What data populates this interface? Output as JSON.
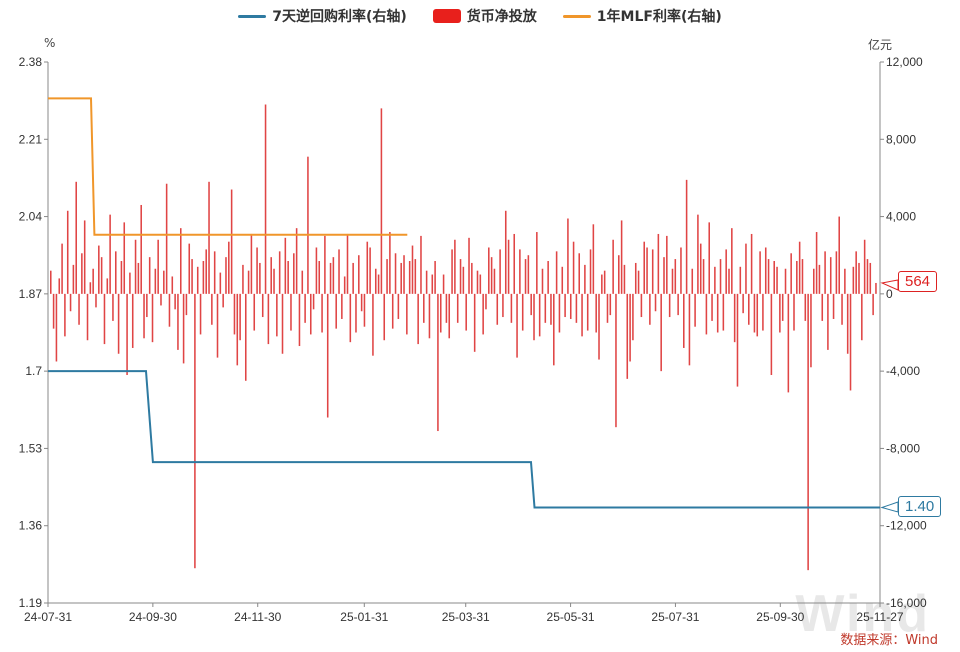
{
  "legend": {
    "items": [
      {
        "label": "7天逆回购利率(右轴)",
        "color": "#2e7aa1",
        "kind": "line"
      },
      {
        "label": "货币净投放",
        "color": "#e8201c",
        "kind": "box"
      },
      {
        "label": "1年MLF利率(右轴)",
        "color": "#f0962a",
        "kind": "line"
      }
    ]
  },
  "left_unit": "%",
  "right_unit": "亿元",
  "source": "数据来源：Wind",
  "watermark": "Wind",
  "callouts": {
    "net_value": "564",
    "rate_value": "1.40"
  },
  "chart_data": {
    "type": "bar+line",
    "x_ticks": [
      "24-07-31",
      "24-09-30",
      "24-11-30",
      "25-01-31",
      "25-03-31",
      "25-05-31",
      "25-07-31",
      "25-09-30",
      "25-11-27"
    ],
    "left_axis": {
      "ticks": [
        "2.38",
        "2.21",
        "2.04",
        "1.87",
        "1.7",
        "1.53",
        "1.36",
        "1.19"
      ],
      "range": [
        1.19,
        2.38
      ]
    },
    "right_axis": {
      "ticks": [
        "12,000",
        "8,000",
        "4,000",
        "0",
        "-4,000",
        "-8,000",
        "-12,000",
        "-16,000"
      ],
      "range": [
        -16000,
        12000
      ]
    },
    "series": [
      {
        "name": "7天逆回购利率(右轴)",
        "type": "line",
        "color": "#2e7aa1",
        "points": [
          [
            "24-07-31",
            1.7
          ],
          [
            "24-09-26",
            1.7
          ],
          [
            "24-09-30",
            1.5
          ],
          [
            "25-05-08",
            1.5
          ],
          [
            "25-05-10",
            1.4
          ],
          [
            "25-11-27",
            1.4
          ]
        ]
      },
      {
        "name": "1年MLF利率(右轴)",
        "type": "line",
        "color": "#f0962a",
        "points": [
          [
            "24-07-31",
            2.3
          ],
          [
            "24-08-25",
            2.3
          ],
          [
            "24-08-27",
            2.0
          ],
          [
            "25-02-25",
            2.0
          ]
        ]
      },
      {
        "name": "货币净投放",
        "type": "bar",
        "color": "#e8201c",
        "values": [
          1200,
          -1800,
          -3500,
          800,
          2600,
          -2200,
          4300,
          -900,
          1500,
          5800,
          -1600,
          2100,
          3800,
          -2400,
          600,
          1300,
          -700,
          2500,
          1900,
          -2600,
          800,
          4100,
          -1400,
          2200,
          -3100,
          1700,
          3700,
          -4200,
          1100,
          -2800,
          2800,
          1600,
          4600,
          -2300,
          -1200,
          1900,
          -2500,
          1300,
          2800,
          -600,
          1200,
          5700,
          -1700,
          900,
          -800,
          -2900,
          3400,
          -3600,
          -1100,
          2600,
          1800,
          -14200,
          1400,
          -2100,
          1700,
          2300,
          5800,
          -1600,
          2200,
          -3300,
          1100,
          -700,
          1900,
          2700,
          5400,
          -2100,
          -3700,
          -2400,
          1500,
          -4500,
          1200,
          3100,
          -1900,
          2400,
          1600,
          -1200,
          9800,
          -2600,
          1900,
          1300,
          -2200,
          2200,
          -3100,
          2900,
          1700,
          -1900,
          2100,
          3400,
          -2700,
          1200,
          -1500,
          7100,
          -2100,
          -800,
          2400,
          1700,
          -2000,
          3000,
          -6400,
          1600,
          1900,
          -1800,
          2300,
          -1300,
          900,
          3100,
          -2500,
          1600,
          -2000,
          2000,
          -900,
          -1700,
          2700,
          2400,
          -3200,
          1300,
          1000,
          9600,
          -2400,
          1800,
          3200,
          -1800,
          2100,
          -1300,
          1600,
          2000,
          -2100,
          1700,
          2500,
          1800,
          -2600,
          3000,
          -1500,
          1200,
          -2300,
          1000,
          1700,
          -7100,
          -2000,
          1000,
          -1500,
          -2300,
          2300,
          2800,
          -1500,
          1800,
          1400,
          -1900,
          2900,
          1600,
          -3000,
          1200,
          1000,
          -2100,
          -800,
          2400,
          1900,
          1300,
          -1600,
          2300,
          -1200,
          4300,
          2800,
          -1500,
          3100,
          -3300,
          2300,
          -1900,
          1800,
          2000,
          -1100,
          -2400,
          3200,
          -2200,
          1300,
          -1500,
          1700,
          -1600,
          -3700,
          2200,
          -2000,
          1400,
          -1200,
          3900,
          -1300,
          2700,
          -1500,
          2100,
          -2200,
          1500,
          -1900,
          2300,
          3600,
          -2000,
          -3400,
          1000,
          1200,
          -1500,
          -1100,
          2800,
          -6900,
          2000,
          3800,
          1500,
          -4400,
          -3500,
          -2400,
          1600,
          1200,
          -1200,
          2700,
          2400,
          -1600,
          2300,
          -900,
          3100,
          -4000,
          1900,
          3000,
          -1200,
          1300,
          1800,
          -1100,
          2400,
          -2800,
          5900,
          -3700,
          1300,
          -1700,
          4100,
          2600,
          1800,
          -2100,
          3700,
          -1400,
          1400,
          -2000,
          1800,
          -1900,
          2300,
          1300,
          3400,
          -2500,
          -4800,
          1400,
          -1000,
          2600,
          -1600,
          3100,
          -2000,
          -2200,
          2200,
          -1900,
          2400,
          1800,
          -4200,
          1700,
          1400,
          -2000,
          -1400,
          1300,
          -5100,
          2100,
          -1900,
          1700,
          2700,
          1800,
          -1400,
          -14300,
          -3800,
          1300,
          3200,
          1500,
          -1400,
          2200,
          -2900,
          1900,
          -1300,
          2200,
          4000,
          -1600,
          1300,
          -3100,
          -5000,
          1400,
          2200,
          1600,
          -2400,
          2800,
          1800,
          1600,
          -1100,
          564
        ]
      }
    ]
  }
}
